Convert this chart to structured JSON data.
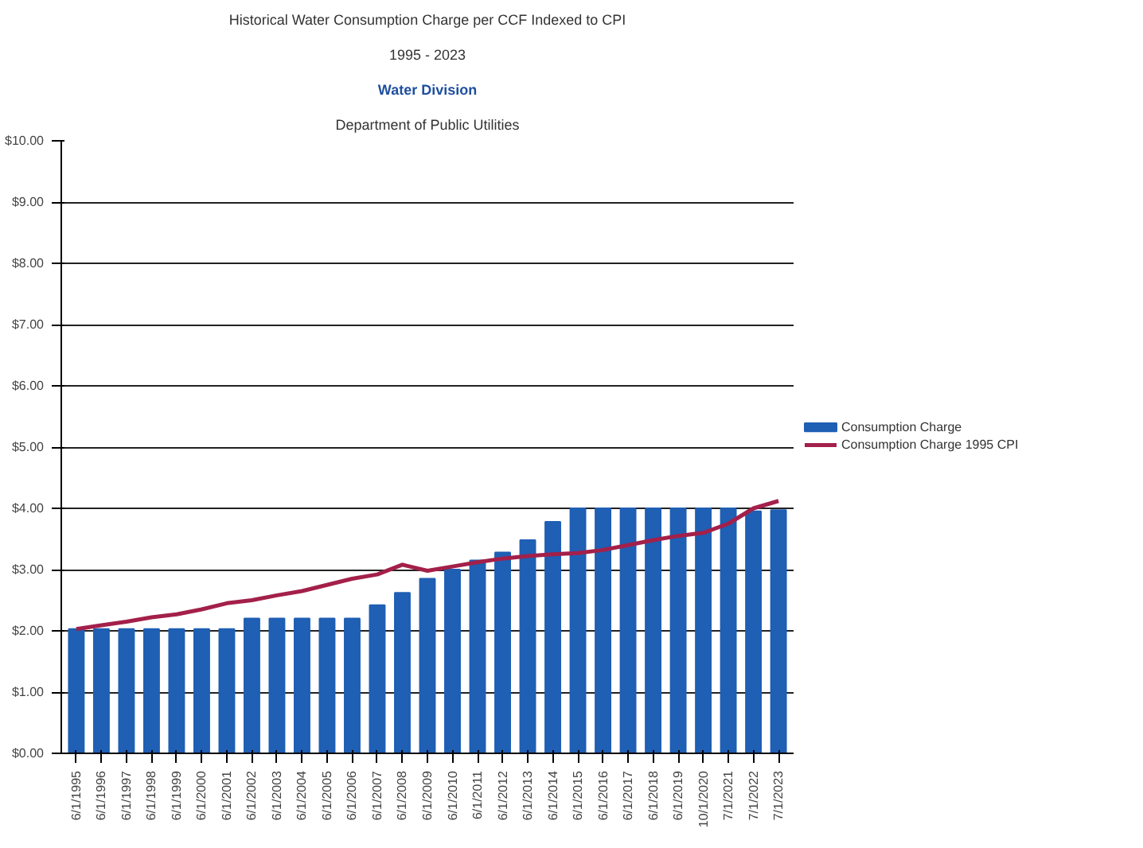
{
  "chart_data": {
    "type": "bar",
    "title": "Historical Water Consumption Charge per CCF Indexed to CPI",
    "subtitle": "1995 - 2023",
    "annotations": [
      "Water Division",
      "Department of Public Utilities"
    ],
    "categories": [
      "6/1/1995",
      "6/1/1996",
      "6/1/1997",
      "6/1/1998",
      "6/1/1999",
      "6/1/2000",
      "6/1/2001",
      "6/1/2002",
      "6/1/2003",
      "6/1/2004",
      "6/1/2005",
      "6/1/2006",
      "6/1/2007",
      "6/1/2008",
      "6/1/2009",
      "6/1/2010",
      "6/1/2011",
      "6/1/2012",
      "6/1/2013",
      "6/1/2014",
      "6/1/2015",
      "6/1/2016",
      "6/1/2017",
      "6/1/2018",
      "6/1/2019",
      "10/1/2020",
      "7/1/2021",
      "7/1/2022",
      "7/1/2023"
    ],
    "series": [
      {
        "name": "Consumption Charge",
        "color": "#1f5fb4",
        "values": [
          2.03,
          2.03,
          2.03,
          2.03,
          2.03,
          2.03,
          2.03,
          2.2,
          2.2,
          2.2,
          2.2,
          2.2,
          2.42,
          2.62,
          2.85,
          3.0,
          3.15,
          3.28,
          3.48,
          3.78,
          4.0,
          4.0,
          4.0,
          4.0,
          4.0,
          4.0,
          4.0,
          3.95,
          3.97
        ]
      },
      {
        "name": "Consumption Charge 1995 CPI",
        "type": "line",
        "color": "#a3204a",
        "values": [
          2.03,
          2.09,
          2.15,
          2.22,
          2.27,
          2.35,
          2.45,
          2.5,
          2.58,
          2.65,
          2.75,
          2.85,
          2.92,
          3.08,
          2.98,
          3.05,
          3.12,
          3.18,
          3.22,
          3.25,
          3.27,
          3.32,
          3.4,
          3.48,
          3.55,
          3.6,
          3.75,
          4.0,
          4.12
        ]
      }
    ],
    "ylim": [
      0,
      10
    ],
    "yticks": [
      {
        "value": 0,
        "label": "$0.00"
      },
      {
        "value": 1,
        "label": "$1.00"
      },
      {
        "value": 2,
        "label": "$2.00"
      },
      {
        "value": 3,
        "label": "$3.00"
      },
      {
        "value": 4,
        "label": "$4.00"
      },
      {
        "value": 5,
        "label": "$5.00"
      },
      {
        "value": 6,
        "label": "$6.00"
      },
      {
        "value": 7,
        "label": "$7.00"
      },
      {
        "value": 8,
        "label": "$8.00"
      },
      {
        "value": 9,
        "label": "$9.00"
      },
      {
        "value": 10,
        "label": "$10.00"
      }
    ],
    "grid": "y",
    "legend": "right",
    "line_style": "solid",
    "marker": "none"
  }
}
